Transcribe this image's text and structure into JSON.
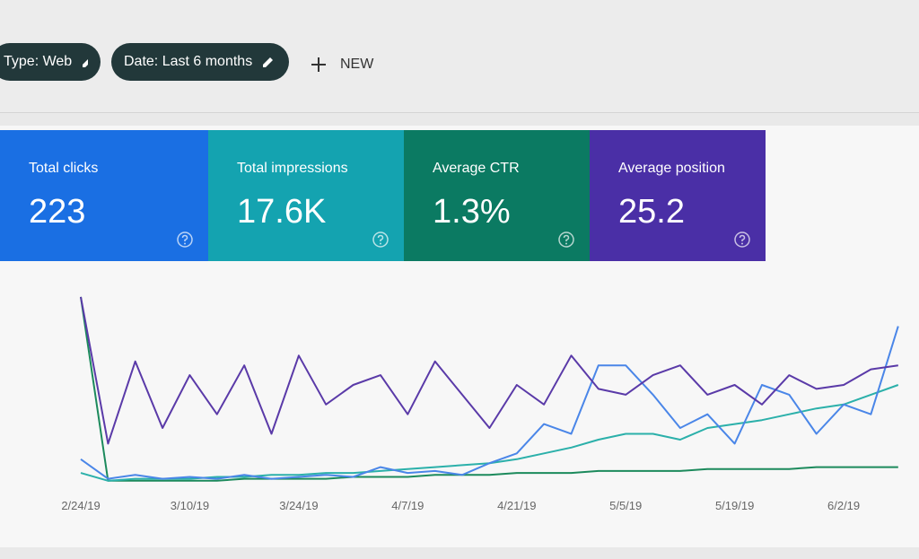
{
  "toolbar": {
    "chips": [
      "Type: Web",
      "Date: Last 6 months"
    ],
    "new_button": "NEW"
  },
  "cards": [
    {
      "label": "Total clicks",
      "value": "223",
      "color": "#1a6fe3"
    },
    {
      "label": "Total impressions",
      "value": "17.6K",
      "color": "#14a3b0"
    },
    {
      "label": "Average CTR",
      "value": "1.3%",
      "color": "#0b7a62"
    },
    {
      "label": "Average position",
      "value": "25.2",
      "color": "#4a2fa6"
    }
  ],
  "chart_data": {
    "type": "line",
    "categories": [
      "2/24/19",
      null,
      null,
      null,
      "3/10/19",
      null,
      null,
      null,
      "3/24/19",
      null,
      null,
      null,
      "4/7/19",
      null,
      null,
      null,
      "4/21/19",
      null,
      null,
      null,
      "5/5/19",
      null,
      null,
      null,
      "5/19/19",
      null,
      null,
      null,
      "6/2/19",
      null,
      null
    ],
    "ylim": [
      0,
      100
    ],
    "series": [
      {
        "color": "#1c8a5c",
        "values": [
          95,
          1,
          1,
          1,
          1,
          1,
          2,
          2,
          2,
          2,
          3,
          3,
          3,
          4,
          4,
          4,
          5,
          5,
          5,
          6,
          6,
          6,
          6,
          7,
          7,
          7,
          7,
          8,
          8,
          8,
          8
        ]
      },
      {
        "color": "#2bb0aa",
        "values": [
          5,
          1,
          2,
          2,
          2,
          3,
          3,
          4,
          4,
          5,
          5,
          6,
          7,
          8,
          9,
          10,
          12,
          15,
          18,
          22,
          25,
          25,
          22,
          28,
          30,
          32,
          35,
          38,
          40,
          45,
          50
        ]
      },
      {
        "color": "#4a86e8",
        "values": [
          12,
          2,
          4,
          2,
          3,
          2,
          4,
          2,
          3,
          4,
          3,
          8,
          5,
          6,
          4,
          10,
          15,
          30,
          25,
          60,
          60,
          45,
          28,
          35,
          20,
          50,
          45,
          25,
          40,
          35,
          80
        ]
      },
      {
        "color": "#5a3aa8",
        "values": [
          95,
          20,
          62,
          28,
          55,
          35,
          60,
          25,
          65,
          40,
          50,
          55,
          35,
          62,
          45,
          28,
          50,
          40,
          65,
          48,
          45,
          55,
          60,
          45,
          50,
          40,
          55,
          48,
          50,
          58,
          60
        ]
      }
    ]
  }
}
